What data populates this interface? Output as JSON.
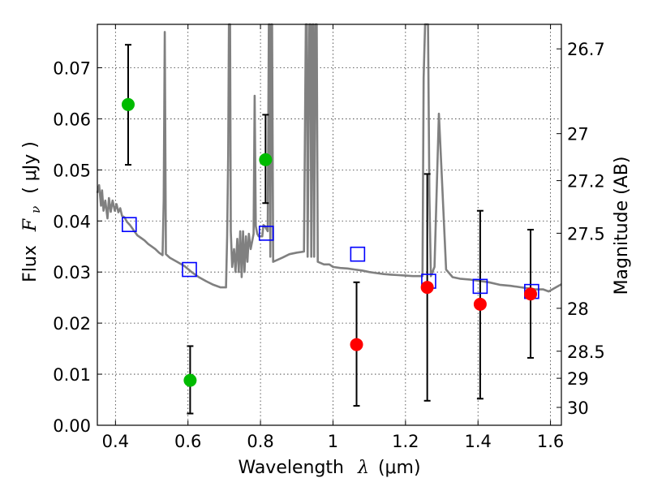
{
  "chart_data": {
    "type": "scatter",
    "xlabel": "Wavelength",
    "xlabel_symbol": "λ",
    "xlabel_unit": "(μm)",
    "ylabel": "Flux",
    "ylabel_symbol": "F",
    "ylabel_symbol_sub": "ν",
    "ylabel_unit": "( μJy )",
    "y2label": "Magnitude (AB)",
    "xlim": [
      0.35,
      1.63
    ],
    "ylim": [
      0.0,
      0.0785
    ],
    "grid": true,
    "x_ticks": [
      {
        "value": 0.4,
        "label": "0.4"
      },
      {
        "value": 0.6,
        "label": "0.6"
      },
      {
        "value": 0.8,
        "label": "0.8"
      },
      {
        "value": 1.0,
        "label": "1"
      },
      {
        "value": 1.2,
        "label": "1.2"
      },
      {
        "value": 1.4,
        "label": "1.4"
      },
      {
        "value": 1.6,
        "label": "1.6"
      }
    ],
    "y_ticks": [
      {
        "value": 0.0,
        "label": "0.00"
      },
      {
        "value": 0.01,
        "label": "0.01"
      },
      {
        "value": 0.02,
        "label": "0.02"
      },
      {
        "value": 0.03,
        "label": "0.03"
      },
      {
        "value": 0.04,
        "label": "0.04"
      },
      {
        "value": 0.05,
        "label": "0.05"
      },
      {
        "value": 0.06,
        "label": "0.06"
      },
      {
        "value": 0.07,
        "label": "0.07"
      }
    ],
    "y2_ticks": [
      {
        "flux": 0.0737,
        "label": "26.7"
      },
      {
        "flux": 0.0571,
        "label": "27"
      },
      {
        "flux": 0.0479,
        "label": "27.2"
      },
      {
        "flux": 0.0376,
        "label": "27.5"
      },
      {
        "flux": 0.0229,
        "label": "28"
      },
      {
        "flux": 0.0145,
        "label": "28.5"
      },
      {
        "flux": 0.0092,
        "label": "29"
      },
      {
        "flux": 0.0035,
        "label": "30"
      }
    ],
    "detections_color": "#00bb00",
    "detections": [
      {
        "x": 0.435,
        "y": 0.0628,
        "yerr_low": 0.051,
        "yerr_high": 0.0745
      },
      {
        "x": 0.606,
        "y": 0.0088,
        "yerr_low": 0.0023,
        "yerr_high": 0.0155
      },
      {
        "x": 0.814,
        "y": 0.052,
        "yerr_low": 0.0435,
        "yerr_high": 0.0608
      }
    ],
    "upper_limits_color": "#ff0000",
    "upper_limits": [
      {
        "x": 1.065,
        "y": 0.0158,
        "yerr_low": 0.0038,
        "yerr_high": 0.028
      },
      {
        "x": 1.26,
        "y": 0.027,
        "yerr_low": 0.0048,
        "yerr_high": 0.0492
      },
      {
        "x": 1.406,
        "y": 0.0237,
        "yerr_low": 0.0052,
        "yerr_high": 0.042
      },
      {
        "x": 1.545,
        "y": 0.0257,
        "yerr_low": 0.0132,
        "yerr_high": 0.0383
      }
    ],
    "model_photometry_color": "#0000ff",
    "model_photometry": [
      {
        "x": 0.438,
        "y": 0.0393
      },
      {
        "x": 0.604,
        "y": 0.0305
      },
      {
        "x": 0.816,
        "y": 0.0376
      },
      {
        "x": 1.068,
        "y": 0.0335
      },
      {
        "x": 1.264,
        "y": 0.0282
      },
      {
        "x": 1.406,
        "y": 0.0272
      },
      {
        "x": 1.548,
        "y": 0.0262
      }
    ],
    "spectrum_color": "#808080",
    "spectrum": [
      [
        0.35,
        0.0455
      ],
      [
        0.355,
        0.047
      ],
      [
        0.36,
        0.043
      ],
      [
        0.363,
        0.046
      ],
      [
        0.367,
        0.042
      ],
      [
        0.372,
        0.044
      ],
      [
        0.378,
        0.0405
      ],
      [
        0.382,
        0.0445
      ],
      [
        0.387,
        0.0418
      ],
      [
        0.392,
        0.044
      ],
      [
        0.398,
        0.042
      ],
      [
        0.403,
        0.0433
      ],
      [
        0.408,
        0.0417
      ],
      [
        0.413,
        0.0425
      ],
      [
        0.418,
        0.041
      ],
      [
        0.425,
        0.0407
      ],
      [
        0.432,
        0.0398
      ],
      [
        0.44,
        0.0392
      ],
      [
        0.45,
        0.0382
      ],
      [
        0.46,
        0.0372
      ],
      [
        0.47,
        0.0367
      ],
      [
        0.48,
        0.0362
      ],
      [
        0.49,
        0.0355
      ],
      [
        0.5,
        0.035
      ],
      [
        0.51,
        0.0345
      ],
      [
        0.52,
        0.0338
      ],
      [
        0.53,
        0.0333
      ],
      [
        0.533,
        0.044
      ],
      [
        0.536,
        0.077
      ],
      [
        0.539,
        0.0335
      ],
      [
        0.55,
        0.0328
      ],
      [
        0.57,
        0.032
      ],
      [
        0.59,
        0.0312
      ],
      [
        0.61,
        0.03
      ],
      [
        0.63,
        0.029
      ],
      [
        0.65,
        0.0282
      ],
      [
        0.67,
        0.0275
      ],
      [
        0.69,
        0.027
      ],
      [
        0.705,
        0.027
      ],
      [
        0.708,
        0.037
      ],
      [
        0.711,
        0.053
      ],
      [
        0.713,
        0.079
      ],
      [
        0.716,
        0.079
      ],
      [
        0.718,
        0.038
      ],
      [
        0.722,
        0.031
      ],
      [
        0.727,
        0.0345
      ],
      [
        0.731,
        0.03
      ],
      [
        0.736,
        0.0365
      ],
      [
        0.74,
        0.03
      ],
      [
        0.744,
        0.038
      ],
      [
        0.748,
        0.029
      ],
      [
        0.752,
        0.038
      ],
      [
        0.756,
        0.03
      ],
      [
        0.76,
        0.037
      ],
      [
        0.764,
        0.032
      ],
      [
        0.768,
        0.0375
      ],
      [
        0.773,
        0.0345
      ],
      [
        0.777,
        0.036
      ],
      [
        0.781,
        0.0375
      ],
      [
        0.784,
        0.0645
      ],
      [
        0.787,
        0.039
      ],
      [
        0.791,
        0.0375
      ],
      [
        0.795,
        0.037
      ],
      [
        0.8,
        0.037
      ],
      [
        0.805,
        0.037
      ],
      [
        0.808,
        0.0392
      ],
      [
        0.812,
        0.039
      ],
      [
        0.816,
        0.0385
      ],
      [
        0.82,
        0.038
      ],
      [
        0.823,
        0.079
      ],
      [
        0.825,
        0.079
      ],
      [
        0.827,
        0.033
      ],
      [
        0.83,
        0.079
      ],
      [
        0.832,
        0.079
      ],
      [
        0.835,
        0.032
      ],
      [
        0.86,
        0.0328
      ],
      [
        0.88,
        0.0335
      ],
      [
        0.9,
        0.0338
      ],
      [
        0.92,
        0.034
      ],
      [
        0.925,
        0.079
      ],
      [
        0.928,
        0.079
      ],
      [
        0.93,
        0.033
      ],
      [
        0.935,
        0.079
      ],
      [
        0.938,
        0.079
      ],
      [
        0.94,
        0.033
      ],
      [
        0.944,
        0.079
      ],
      [
        0.946,
        0.079
      ],
      [
        0.948,
        0.033
      ],
      [
        0.952,
        0.079
      ],
      [
        0.955,
        0.079
      ],
      [
        0.958,
        0.032
      ],
      [
        0.975,
        0.0315
      ],
      [
        0.99,
        0.0315
      ],
      [
        1.0,
        0.031
      ],
      [
        1.02,
        0.0308
      ],
      [
        1.04,
        0.0307
      ],
      [
        1.06,
        0.0305
      ],
      [
        1.08,
        0.0303
      ],
      [
        1.1,
        0.03
      ],
      [
        1.12,
        0.0298
      ],
      [
        1.14,
        0.0296
      ],
      [
        1.16,
        0.0295
      ],
      [
        1.18,
        0.0294
      ],
      [
        1.2,
        0.0293
      ],
      [
        1.22,
        0.0292
      ],
      [
        1.24,
        0.0292
      ],
      [
        1.247,
        0.0292
      ],
      [
        1.25,
        0.068
      ],
      [
        1.254,
        0.079
      ],
      [
        1.262,
        0.079
      ],
      [
        1.266,
        0.045
      ],
      [
        1.27,
        0.0292
      ],
      [
        1.28,
        0.031
      ],
      [
        1.292,
        0.061
      ],
      [
        1.302,
        0.046
      ],
      [
        1.312,
        0.0305
      ],
      [
        1.33,
        0.029
      ],
      [
        1.35,
        0.0287
      ],
      [
        1.38,
        0.0285
      ],
      [
        1.4,
        0.0283
      ],
      [
        1.43,
        0.028
      ],
      [
        1.46,
        0.0275
      ],
      [
        1.49,
        0.0273
      ],
      [
        1.52,
        0.027
      ],
      [
        1.54,
        0.0268
      ],
      [
        1.56,
        0.0266
      ],
      [
        1.58,
        0.0266
      ],
      [
        1.595,
        0.0262
      ],
      [
        1.61,
        0.0268
      ],
      [
        1.63,
        0.0276
      ]
    ]
  }
}
